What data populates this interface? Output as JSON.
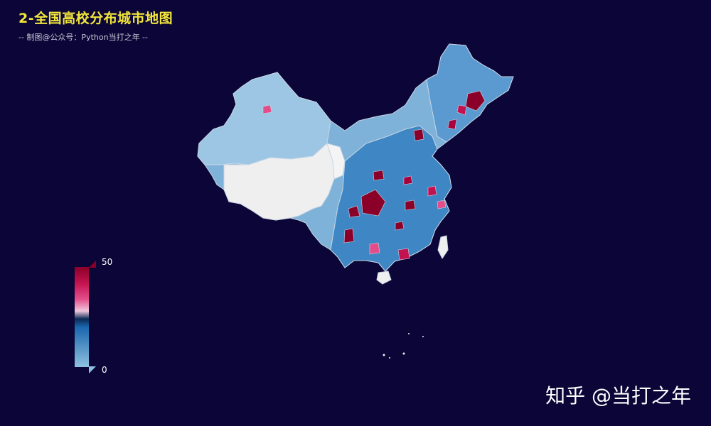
{
  "header": {
    "title": "2-全国高校分布城市地图",
    "subtitle": "-- 制图@公众号：Python当打之年 --"
  },
  "legend": {
    "max_label": "50",
    "min_label": "0",
    "colors": [
      "#8fc1e0",
      "#1a66ad",
      "#0b2a55",
      "#f0c6dc",
      "#e34d8a",
      "#c2124f",
      "#8b0029"
    ]
  },
  "map": {
    "colors": {
      "background": "#0b0637",
      "low": "#8fc1e0",
      "mid": "#2a72b5",
      "high": "#8b0029",
      "no_data": "#efefef",
      "border": "#c8d6e6"
    }
  },
  "watermark": {
    "text": "知乎 @当打之年"
  }
}
